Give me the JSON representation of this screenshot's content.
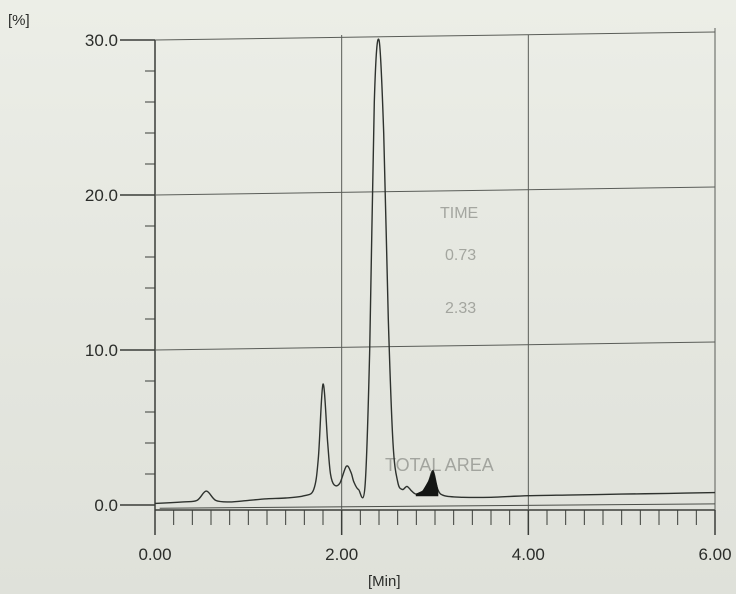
{
  "chart_data": {
    "type": "line",
    "title": "",
    "xlabel": "[Min]",
    "ylabel": "[%]",
    "xlim": [
      0,
      6
    ],
    "ylim": [
      0,
      30
    ],
    "x_ticks": [
      "0.00",
      "2.00",
      "4.00",
      "6.00"
    ],
    "y_ticks": [
      "0.0",
      "10.0",
      "20.0",
      "30.0"
    ],
    "grid": true,
    "legend": "none",
    "line_color": "#2e322e",
    "shaded_peak_color": "#141614",
    "series": [
      {
        "x": [
          0.0,
          0.3,
          0.45,
          0.55,
          0.65,
          0.8,
          1.0,
          1.2,
          1.4,
          1.6,
          1.7,
          1.75,
          1.8,
          1.85,
          1.88,
          1.92,
          1.98,
          2.05,
          2.1,
          2.13,
          2.18,
          2.25,
          2.3,
          2.35,
          2.4,
          2.45,
          2.5,
          2.55,
          2.6,
          2.65,
          2.7,
          2.75,
          2.8,
          2.87,
          2.93,
          2.98,
          3.03,
          3.1,
          3.3,
          3.6,
          4.0,
          4.5,
          5.0,
          5.5,
          6.0
        ],
        "y": [
          0.1,
          0.2,
          0.3,
          0.9,
          0.3,
          0.2,
          0.3,
          0.4,
          0.45,
          0.6,
          1.0,
          3.0,
          7.8,
          4.0,
          2.0,
          1.3,
          1.4,
          2.5,
          2.1,
          1.5,
          1.0,
          1.2,
          10.0,
          26.0,
          30.0,
          24.0,
          12.0,
          4.0,
          1.5,
          1.0,
          1.2,
          0.9,
          0.7,
          0.9,
          1.5,
          2.2,
          1.0,
          0.6,
          0.5,
          0.5,
          0.6,
          0.65,
          0.7,
          0.75,
          0.8
        ]
      }
    ]
  },
  "background_print": {
    "column_time": "TIME",
    "row_values": [
      "0.73",
      "2.33"
    ],
    "footer": "TOTAL AREA"
  }
}
